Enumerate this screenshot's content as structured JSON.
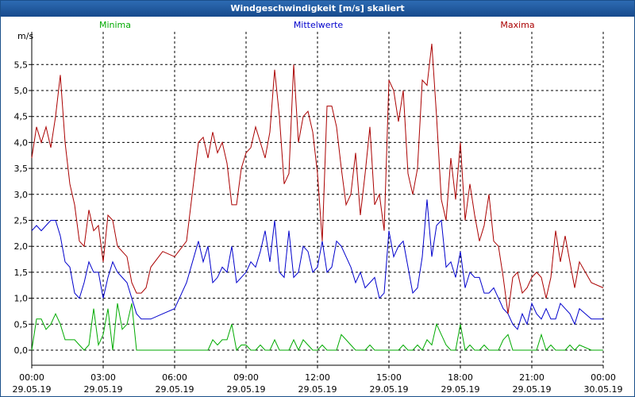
{
  "window": {
    "title": "Windgeschwindigkeit [m/s] skaliert"
  },
  "chart_data": {
    "type": "line",
    "title": "Windgeschwindigkeit [m/s] skaliert",
    "ylabel": "m/s",
    "ylim": [
      -0.3,
      6.2
    ],
    "xlim": [
      0,
      24
    ],
    "grid": true,
    "y_ticks": [
      "0,0",
      "0,5",
      "1,0",
      "1,5",
      "2,0",
      "2,5",
      "3,0",
      "3,5",
      "4,0",
      "4,5",
      "5,0",
      "5,5"
    ],
    "y_tick_values": [
      0,
      0.5,
      1,
      1.5,
      2,
      2.5,
      3,
      3.5,
      4,
      4.5,
      5,
      5.5
    ],
    "x_ticks": [
      {
        "h": 0,
        "time": "00:00",
        "date": "29.05.19"
      },
      {
        "h": 3,
        "time": "03:00",
        "date": "29.05.19"
      },
      {
        "h": 6,
        "time": "06:00",
        "date": "29.05.19"
      },
      {
        "h": 9,
        "time": "09:00",
        "date": "29.05.19"
      },
      {
        "h": 12,
        "time": "12:00",
        "date": "29.05.19"
      },
      {
        "h": 15,
        "time": "15:00",
        "date": "29.05.19"
      },
      {
        "h": 18,
        "time": "18:00",
        "date": "29.05.19"
      },
      {
        "h": 21,
        "time": "21:00",
        "date": "29.05.19"
      },
      {
        "h": 24,
        "time": "00:00",
        "date": "30.05.19"
      }
    ],
    "series": [
      {
        "name": "Minima",
        "color": "#00aa00",
        "x": [
          0,
          0.2,
          0.4,
          0.6,
          0.8,
          1.0,
          1.2,
          1.4,
          1.6,
          1.8,
          2.0,
          2.2,
          2.4,
          2.6,
          2.8,
          3.0,
          3.2,
          3.4,
          3.6,
          3.8,
          4.0,
          4.2,
          4.4,
          4.6,
          4.8,
          5.0,
          5.5,
          6.0,
          6.5,
          7.0,
          7.2,
          7.4,
          7.6,
          7.8,
          8.0,
          8.2,
          8.4,
          8.6,
          8.8,
          9.0,
          9.2,
          9.4,
          9.6,
          9.8,
          10.0,
          10.2,
          10.4,
          10.6,
          10.8,
          11.0,
          11.2,
          11.4,
          11.6,
          11.8,
          12.0,
          12.2,
          12.4,
          12.6,
          12.8,
          13.0,
          13.2,
          13.4,
          13.6,
          13.8,
          14.0,
          14.2,
          14.4,
          14.6,
          14.8,
          15.0,
          15.2,
          15.4,
          15.6,
          15.8,
          16.0,
          16.2,
          16.4,
          16.6,
          16.8,
          17.0,
          17.2,
          17.4,
          17.6,
          17.8,
          18.0,
          18.2,
          18.4,
          18.6,
          18.8,
          19.0,
          19.2,
          19.4,
          19.6,
          19.8,
          20.0,
          20.2,
          20.4,
          20.6,
          20.8,
          21.0,
          21.2,
          21.4,
          21.6,
          21.8,
          22.0,
          22.2,
          22.4,
          22.6,
          22.8,
          23.0,
          23.5,
          24.0
        ],
        "values": [
          0.0,
          0.6,
          0.6,
          0.4,
          0.5,
          0.7,
          0.5,
          0.2,
          0.2,
          0.2,
          0.1,
          0.0,
          0.1,
          0.8,
          0.1,
          0.3,
          0.8,
          0.0,
          0.9,
          0.4,
          0.5,
          0.9,
          0.0,
          0.0,
          0.0,
          0.0,
          0.0,
          0.0,
          0.0,
          0.0,
          0.0,
          0.0,
          0.2,
          0.1,
          0.2,
          0.2,
          0.5,
          0.0,
          0.1,
          0.1,
          0.0,
          0.0,
          0.1,
          0.0,
          0.0,
          0.2,
          0.0,
          0.0,
          0.0,
          0.2,
          0.0,
          0.2,
          0.1,
          0.0,
          0.0,
          0.1,
          0.0,
          0.0,
          0.0,
          0.3,
          0.2,
          0.1,
          0.0,
          0.0,
          0.0,
          0.1,
          0.0,
          0.0,
          0.0,
          0.0,
          0.0,
          0.0,
          0.1,
          0.0,
          0.0,
          0.1,
          0.0,
          0.2,
          0.1,
          0.5,
          0.3,
          0.1,
          0.0,
          0.0,
          0.5,
          0.0,
          0.1,
          0.0,
          0.0,
          0.1,
          0.0,
          0.0,
          0.0,
          0.2,
          0.3,
          0.0,
          0.0,
          0.0,
          0.0,
          0.0,
          0.0,
          0.3,
          0.0,
          0.1,
          0.0,
          0.0,
          0.0,
          0.1,
          0.0,
          0.1,
          0.0,
          0.0
        ]
      },
      {
        "name": "Mittelwerte",
        "color": "#0000cc",
        "x": [
          0,
          0.2,
          0.4,
          0.6,
          0.8,
          1.0,
          1.2,
          1.4,
          1.6,
          1.8,
          2.0,
          2.2,
          2.4,
          2.6,
          2.8,
          3.0,
          3.2,
          3.4,
          3.6,
          3.8,
          4.0,
          4.2,
          4.4,
          4.6,
          4.8,
          5.0,
          5.5,
          6.0,
          6.5,
          7.0,
          7.2,
          7.4,
          7.6,
          7.8,
          8.0,
          8.2,
          8.4,
          8.6,
          8.8,
          9.0,
          9.2,
          9.4,
          9.6,
          9.8,
          10.0,
          10.2,
          10.4,
          10.6,
          10.8,
          11.0,
          11.2,
          11.4,
          11.6,
          11.8,
          12.0,
          12.2,
          12.4,
          12.6,
          12.8,
          13.0,
          13.2,
          13.4,
          13.6,
          13.8,
          14.0,
          14.2,
          14.4,
          14.6,
          14.8,
          15.0,
          15.2,
          15.4,
          15.6,
          15.8,
          16.0,
          16.2,
          16.4,
          16.6,
          16.8,
          17.0,
          17.2,
          17.4,
          17.6,
          17.8,
          18.0,
          18.2,
          18.4,
          18.6,
          18.8,
          19.0,
          19.2,
          19.4,
          19.6,
          19.8,
          20.0,
          20.2,
          20.4,
          20.6,
          20.8,
          21.0,
          21.2,
          21.4,
          21.6,
          21.8,
          22.0,
          22.2,
          22.4,
          22.6,
          22.8,
          23.0,
          23.5,
          24.0
        ],
        "values": [
          2.3,
          2.4,
          2.3,
          2.4,
          2.5,
          2.5,
          2.2,
          1.7,
          1.6,
          1.1,
          1.0,
          1.3,
          1.7,
          1.5,
          1.5,
          1.0,
          1.4,
          1.7,
          1.5,
          1.4,
          1.3,
          1.0,
          0.7,
          0.6,
          0.6,
          0.6,
          0.7,
          0.8,
          1.3,
          2.1,
          1.7,
          2.0,
          1.3,
          1.4,
          1.6,
          1.5,
          2.0,
          1.3,
          1.4,
          1.5,
          1.7,
          1.6,
          1.9,
          2.3,
          1.7,
          2.5,
          1.5,
          1.4,
          2.3,
          1.4,
          1.5,
          2.0,
          1.9,
          1.5,
          1.6,
          2.1,
          1.5,
          1.6,
          2.1,
          2.0,
          1.8,
          1.6,
          1.3,
          1.5,
          1.2,
          1.3,
          1.4,
          1.0,
          1.1,
          2.3,
          1.8,
          2.0,
          2.1,
          1.6,
          1.1,
          1.2,
          1.8,
          2.9,
          1.8,
          2.4,
          2.5,
          1.6,
          1.7,
          1.4,
          1.9,
          1.2,
          1.5,
          1.4,
          1.4,
          1.1,
          1.1,
          1.2,
          1.0,
          0.8,
          0.7,
          0.5,
          0.4,
          0.7,
          0.5,
          0.9,
          0.7,
          0.6,
          0.8,
          0.6,
          0.6,
          0.9,
          0.8,
          0.7,
          0.5,
          0.8,
          0.6,
          0.6
        ]
      },
      {
        "name": "Maxima",
        "color": "#aa0000",
        "x": [
          0,
          0.2,
          0.4,
          0.6,
          0.8,
          1.0,
          1.2,
          1.4,
          1.6,
          1.8,
          2.0,
          2.2,
          2.4,
          2.6,
          2.8,
          3.0,
          3.2,
          3.4,
          3.6,
          3.8,
          4.0,
          4.2,
          4.4,
          4.6,
          4.8,
          5.0,
          5.5,
          6.0,
          6.5,
          7.0,
          7.2,
          7.4,
          7.6,
          7.8,
          8.0,
          8.2,
          8.4,
          8.6,
          8.8,
          9.0,
          9.2,
          9.4,
          9.6,
          9.8,
          10.0,
          10.2,
          10.4,
          10.6,
          10.8,
          11.0,
          11.2,
          11.4,
          11.6,
          11.8,
          12.0,
          12.2,
          12.4,
          12.6,
          12.8,
          13.0,
          13.2,
          13.4,
          13.6,
          13.8,
          14.0,
          14.2,
          14.4,
          14.6,
          14.8,
          15.0,
          15.2,
          15.4,
          15.6,
          15.8,
          16.0,
          16.2,
          16.4,
          16.6,
          16.8,
          17.0,
          17.2,
          17.4,
          17.6,
          17.8,
          18.0,
          18.2,
          18.4,
          18.6,
          18.8,
          19.0,
          19.2,
          19.4,
          19.6,
          19.8,
          20.0,
          20.2,
          20.4,
          20.6,
          20.8,
          21.0,
          21.2,
          21.4,
          21.6,
          21.8,
          22.0,
          22.2,
          22.4,
          22.6,
          22.8,
          23.0,
          23.5,
          24.0
        ],
        "values": [
          3.7,
          4.3,
          4.0,
          4.3,
          3.9,
          4.5,
          5.3,
          4.0,
          3.2,
          2.8,
          2.1,
          2.0,
          2.7,
          2.3,
          2.4,
          1.7,
          2.6,
          2.5,
          2.0,
          1.9,
          1.8,
          1.3,
          1.1,
          1.1,
          1.2,
          1.6,
          1.9,
          1.8,
          2.1,
          4.0,
          4.1,
          3.7,
          4.2,
          3.8,
          4.0,
          3.6,
          2.8,
          2.8,
          3.5,
          3.8,
          3.9,
          4.3,
          4.0,
          3.7,
          4.2,
          5.4,
          4.5,
          3.2,
          3.4,
          5.5,
          4.0,
          4.5,
          4.6,
          4.2,
          3.4,
          2.1,
          4.7,
          4.7,
          4.3,
          3.5,
          2.8,
          3.0,
          3.8,
          2.6,
          3.4,
          4.3,
          2.8,
          3.0,
          2.3,
          5.2,
          5.0,
          4.4,
          5.0,
          3.4,
          3.0,
          3.5,
          5.2,
          5.1,
          5.9,
          4.5,
          2.9,
          2.5,
          3.7,
          2.9,
          4.0,
          2.5,
          3.2,
          2.6,
          2.1,
          2.4,
          3.0,
          2.1,
          2.0,
          1.4,
          0.7,
          1.4,
          1.5,
          1.1,
          1.2,
          1.4,
          1.5,
          1.4,
          1.0,
          1.4,
          2.3,
          1.7,
          2.2,
          1.7,
          1.2,
          1.7,
          1.3,
          1.2
        ]
      }
    ]
  }
}
